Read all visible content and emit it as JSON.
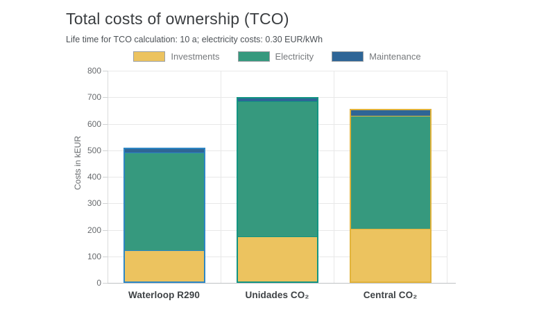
{
  "header": {
    "title": "Total costs of ownership (TCO)",
    "subtitle": "Life time for TCO calculation: 10 a; electricity costs: 0.30 EUR/kWh"
  },
  "chart_data": {
    "type": "bar",
    "stacked": true,
    "title": "Total costs of ownership (TCO)",
    "subtitle": "Life time for TCO calculation: 10 a; electricity costs: 0.30 EUR/kWh",
    "categories": [
      "Waterloop R290",
      "Unidades CO₂",
      "Central CO₂"
    ],
    "series": [
      {
        "name": "Investments",
        "color": "#ecc35f",
        "values": [
          120,
          170,
          200
        ]
      },
      {
        "name": "Electricity",
        "color": "#36997e",
        "values": [
          375,
          520,
          435
        ]
      },
      {
        "name": "Maintenance",
        "color": "#2e6596",
        "values": [
          15,
          10,
          20
        ]
      }
    ],
    "totals": [
      510,
      700,
      655
    ],
    "bar_border_colors": [
      "#2e86c4",
      "#129482",
      "#e2b33b"
    ],
    "xlabel": "",
    "ylabel": "Costs in kEUR",
    "ylim": [
      0,
      800
    ],
    "yticks": [
      0,
      100,
      200,
      300,
      400,
      500,
      600,
      700,
      800
    ],
    "grid": true,
    "legend_position": "top",
    "legend_swatch_border": "#9b9fa3"
  },
  "colors": {
    "background": "#ffffff",
    "title_text": "#3a3d40",
    "subtitle_text": "#4c5156",
    "axis_text": "#66696c",
    "category_text": "#3d4144",
    "gridline": "#e8e8e8",
    "baseline": "#bfc2c4"
  }
}
